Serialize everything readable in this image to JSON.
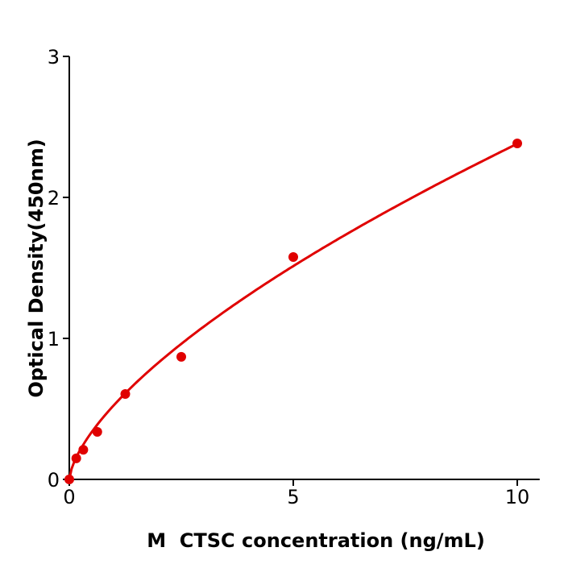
{
  "chart_data": {
    "type": "scatter",
    "title": "",
    "xlabel": "M  CTSC concentration (ng/mL)",
    "ylabel": "Optical Density(450nm)",
    "xlim": [
      0,
      10.5
    ],
    "ylim": [
      0,
      3
    ],
    "xticks": [
      0,
      5,
      10
    ],
    "yticks": [
      0,
      1,
      2,
      3
    ],
    "grid": false,
    "color": "#e00000",
    "points": {
      "x": [
        0,
        0.156,
        0.3125,
        0.625,
        1.25,
        2.5,
        5,
        10
      ],
      "y": [
        0,
        0.149,
        0.21,
        0.337,
        0.606,
        0.869,
        1.577,
        2.383
      ]
    },
    "fit": {
      "type": "power",
      "a": 0.528,
      "b": 0.654
    }
  }
}
